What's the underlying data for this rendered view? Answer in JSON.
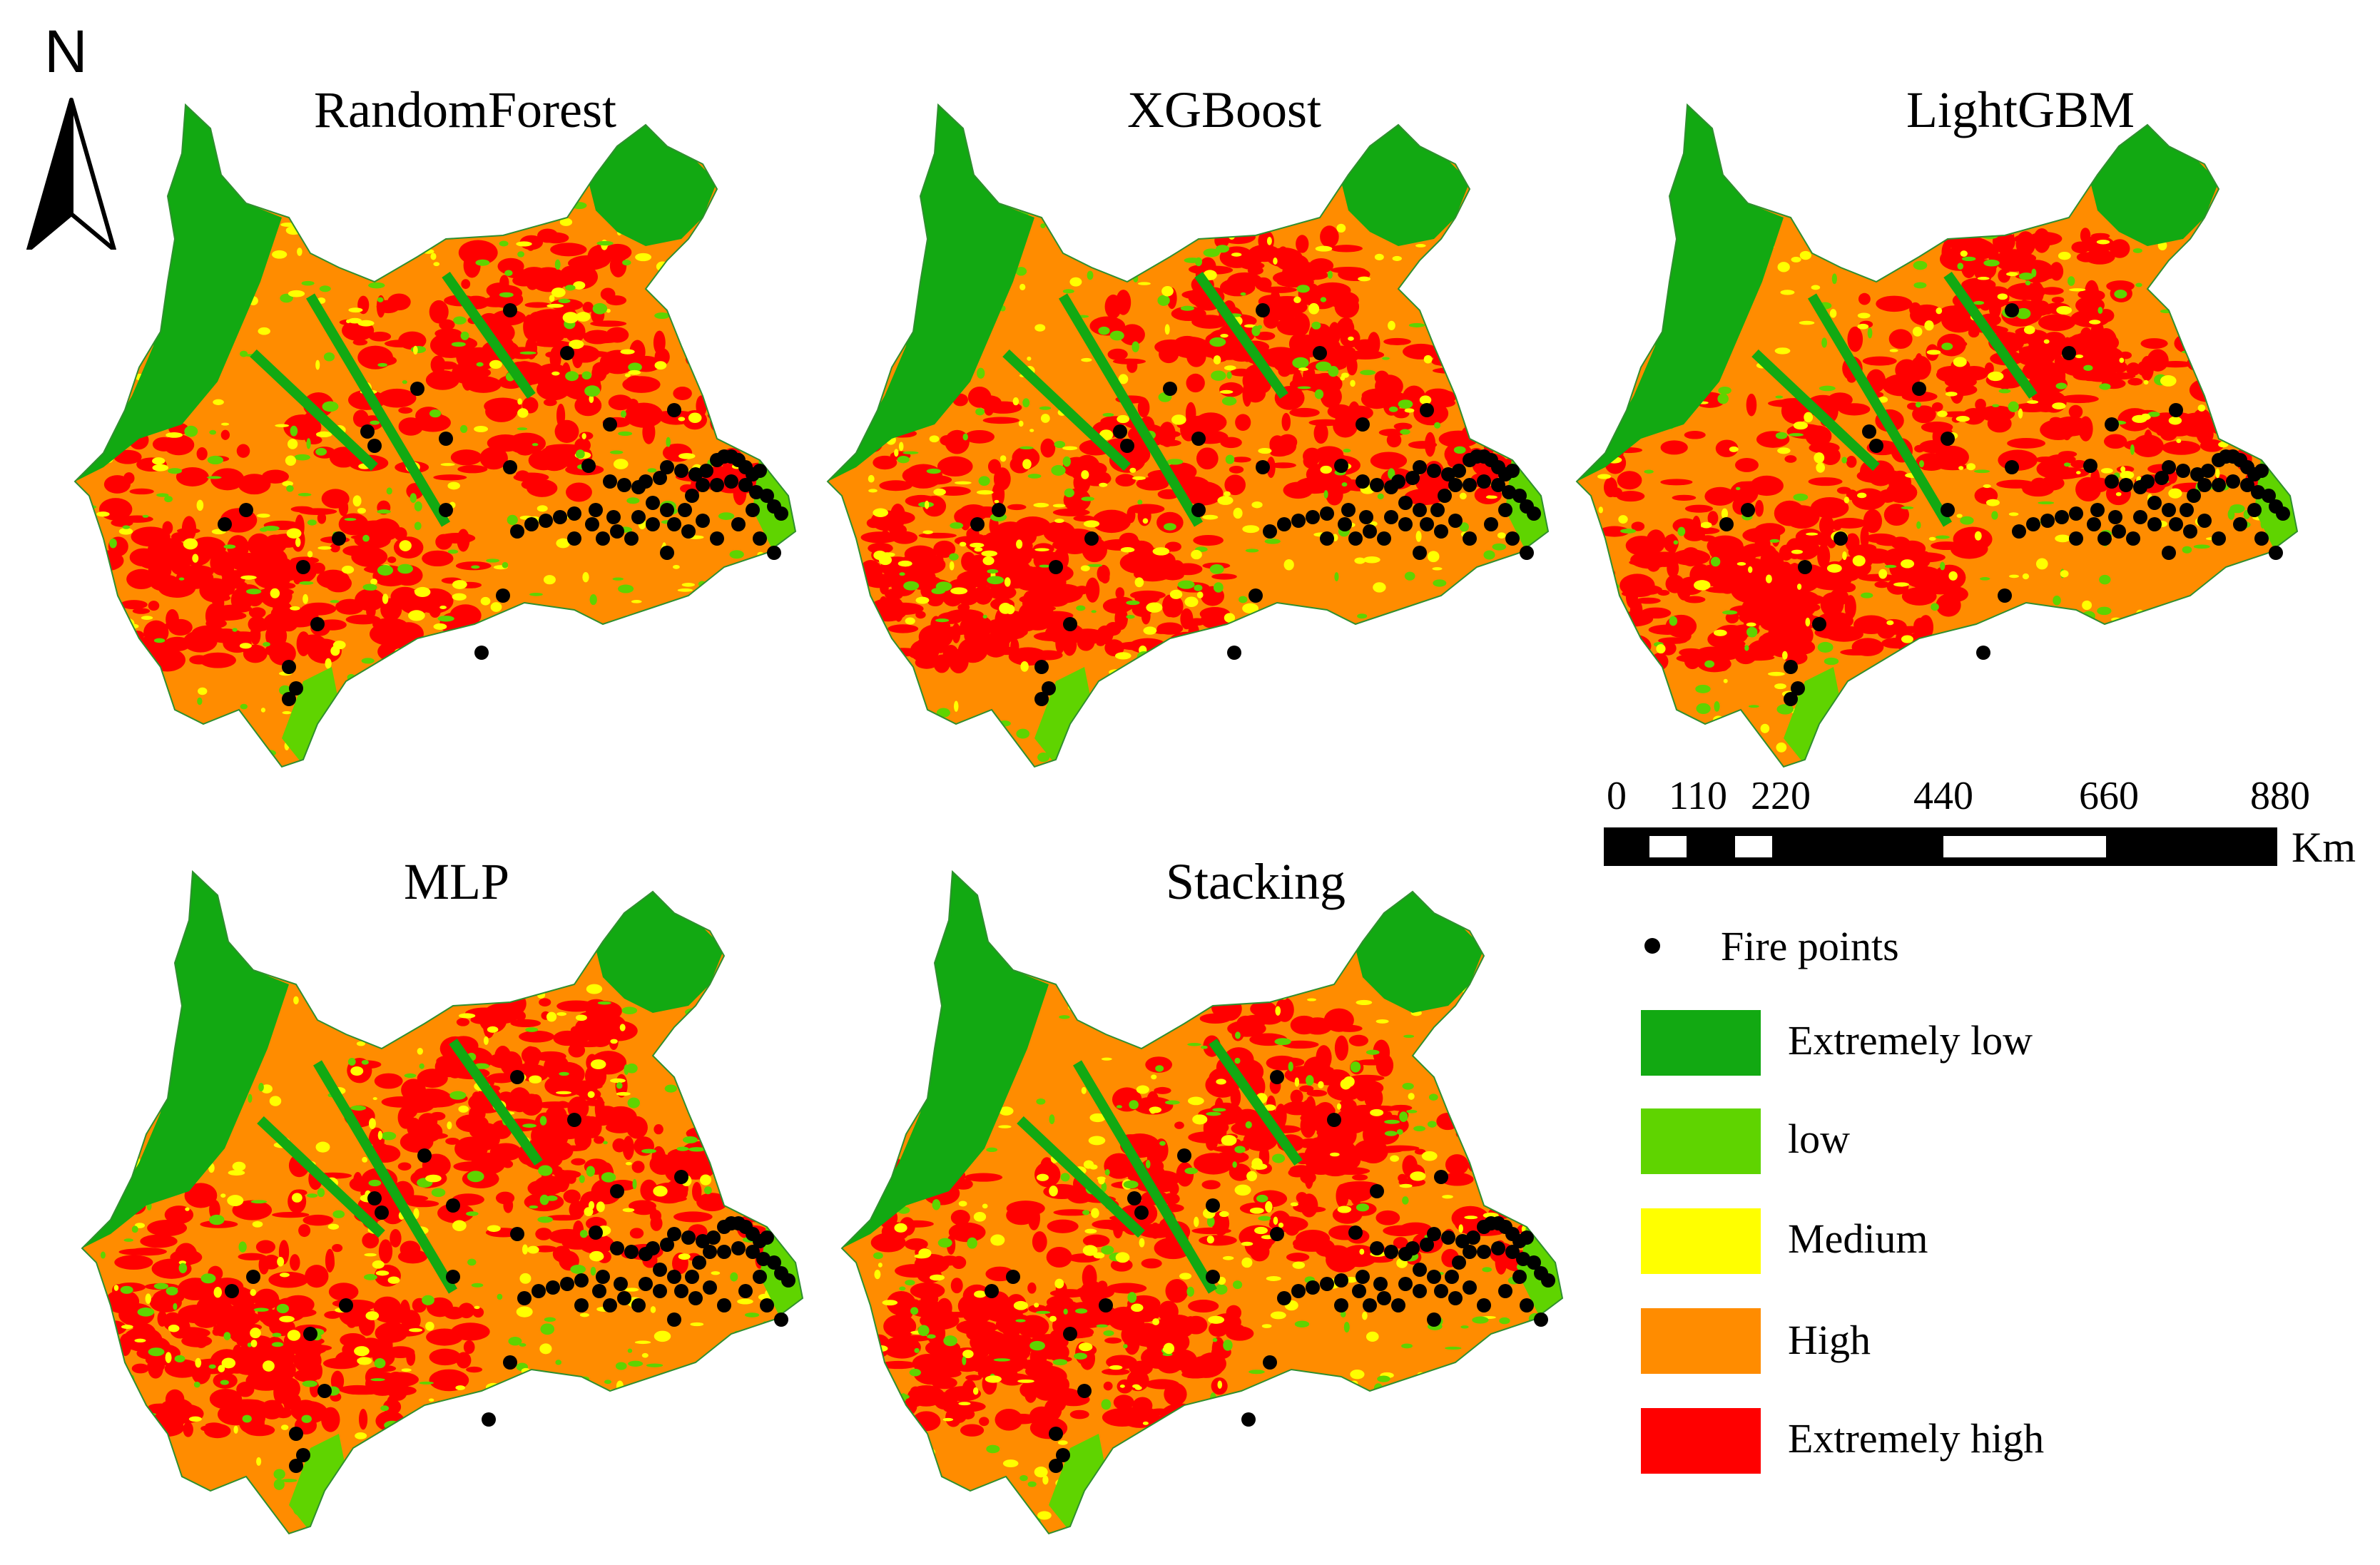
{
  "maps": [
    {
      "title": "RandomForest",
      "variant": "rf"
    },
    {
      "title": "XGBoost",
      "variant": "xgb"
    },
    {
      "title": "LightGBM",
      "variant": "lgbm"
    },
    {
      "title": "MLP",
      "variant": "mlp"
    },
    {
      "title": "Stacking",
      "variant": "stack"
    }
  ],
  "north_arrow": {
    "label": "N"
  },
  "scale_bar": {
    "ticks": [
      "0",
      "110",
      "220",
      "440",
      "660",
      "880"
    ],
    "unit": "Km"
  },
  "legend": {
    "fire_points_label": "Fire points",
    "classes": [
      {
        "label": "Extremely low",
        "color": "#12a912"
      },
      {
        "label": "low",
        "color": "#5fd400"
      },
      {
        "label": "Medium",
        "color": "#ffff00"
      },
      {
        "label": "High",
        "color": "#ff8c00"
      },
      {
        "label": "Extremely high",
        "color": "#ff0000"
      }
    ]
  }
}
